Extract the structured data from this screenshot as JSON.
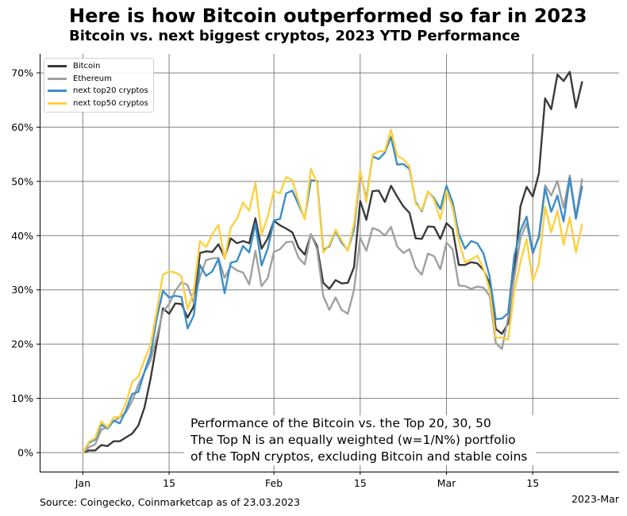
{
  "title": "Here is how Bitcoin outperformed so far in 2023",
  "subtitle": "Bitcoin vs. next biggest cryptos, 2023 YTD Performance",
  "source": "Source: Coingecko, Coinmarketcap as of 23.03.2023",
  "annotation": [
    "Performance of the Bitcoin vs. the Top 20, 30, 50",
    "The Top N is an equally weighted (w=1/N%) portfolio",
    "of the TopN cryptos, excluding Bitcoin and stable coins"
  ],
  "chart_data": {
    "type": "line",
    "title": "Here is how Bitcoin outperformed so far in 2023",
    "subtitle": "Bitcoin vs. next biggest cryptos, 2023 YTD Performance",
    "xlabel": "2023-Mar",
    "ylabel": "",
    "x_start": "2023-01-01",
    "xlim": [
      "2022-12-25",
      "2023-03-29"
    ],
    "ylim": [
      -3.5,
      73.5
    ],
    "x_ticks": [
      {
        "date": "2023-01-01",
        "label": "Jan"
      },
      {
        "date": "2023-01-15",
        "label": "15"
      },
      {
        "date": "2023-02-01",
        "label": "Feb"
      },
      {
        "date": "2023-02-15",
        "label": "15"
      },
      {
        "date": "2023-03-01",
        "label": "Mar"
      },
      {
        "date": "2023-03-15",
        "label": "15"
      }
    ],
    "y_ticks": [
      0,
      10,
      20,
      30,
      40,
      50,
      60,
      70
    ],
    "y_tick_format": "percent",
    "grid": true,
    "legend_position": "top-left",
    "series": [
      {
        "name": "Bitcoin",
        "color": "#3a3a3a",
        "values": [
          0,
          0.4,
          0.4,
          1.4,
          1.2,
          2.1,
          2.1,
          2.8,
          3.5,
          5,
          8.3,
          13.7,
          20.3,
          26.6,
          25.6,
          27.5,
          27.4,
          24.9,
          27,
          36.8,
          37.1,
          37,
          38.4,
          36,
          39.5,
          38.6,
          39,
          38.6,
          43.2,
          37.6,
          39.5,
          42.7,
          41.9,
          41.3,
          40.6,
          37.8,
          36.5,
          40.2,
          38.1,
          31.3,
          30.2,
          31.8,
          31.2,
          31.3,
          34.2,
          46.4,
          42.9,
          48.2,
          48.3,
          46.2,
          49.2,
          47.2,
          45.4,
          44.2,
          39.5,
          39.4,
          41.7,
          41.6,
          39.4,
          42.3,
          41.2,
          34.6,
          34.6,
          35.1,
          34.9,
          33.7,
          31.2,
          22.8,
          21.9,
          23.8,
          33.1,
          45.4,
          49,
          47.2,
          51.5,
          65.3,
          63.3,
          69.7,
          68.5,
          70.2,
          63.6,
          68.3
        ]
      },
      {
        "name": "Ethereum",
        "color": "#a0a0a0",
        "values": [
          0,
          1,
          1.5,
          4.2,
          4.8,
          5.8,
          6.5,
          7.4,
          9.5,
          12.5,
          14.8,
          17,
          21.4,
          26,
          27.4,
          29.8,
          31.4,
          30.9,
          27.6,
          32.4,
          35.5,
          35.8,
          35.9,
          32.2,
          34.4,
          33.6,
          33.2,
          31,
          37.2,
          30.7,
          32.2,
          37,
          37.5,
          38.8,
          38.9,
          35.9,
          34.7,
          40.3,
          37.5,
          28.9,
          26.3,
          28.6,
          26.3,
          25.6,
          30,
          39.6,
          37.2,
          41.4,
          41,
          40,
          41.6,
          38,
          36.8,
          37.5,
          34.1,
          32.8,
          36.7,
          36.2,
          33.8,
          38.7,
          37.5,
          30.8,
          30.7,
          30.2,
          30.6,
          30.4,
          28.9,
          20.2,
          19.1,
          24.9,
          32.3,
          39.5,
          42.3,
          36.6,
          40,
          49.3,
          47.4,
          50.1,
          45.1,
          51.1,
          43.6,
          50.4
        ]
      },
      {
        "name": "next top20 cryptos",
        "color": "#3a8ec8",
        "values": [
          0,
          1.8,
          2.4,
          5.2,
          4.4,
          5.9,
          5.4,
          7.8,
          10.8,
          11.2,
          14.9,
          18.2,
          24.8,
          29.8,
          28.6,
          28.9,
          28.7,
          22.9,
          25.3,
          34.6,
          32.6,
          33.4,
          35.7,
          29.4,
          35,
          35.3,
          38.1,
          36.9,
          42.2,
          34.5,
          37.6,
          42.8,
          43.1,
          47.8,
          48.3,
          45.7,
          43.2,
          50.2,
          50.1,
          37.4,
          38,
          40.9,
          38.7,
          37.3,
          41.2,
          51.6,
          46.8,
          54.6,
          54.1,
          55.3,
          58.2,
          53.1,
          53.2,
          52.3,
          46.2,
          44.5,
          48.1,
          46.9,
          44.9,
          49.2,
          46.1,
          40.3,
          37.6,
          39,
          38.6,
          36.7,
          32.5,
          24.6,
          24.7,
          25.7,
          36.3,
          40.9,
          43.5,
          36.9,
          39.7,
          48.7,
          44.4,
          47.4,
          42.6,
          50.6,
          43.1,
          49
        ]
      },
      {
        "name": "next top50 cryptos",
        "color": "#fdd040",
        "values": [
          0,
          2,
          2.7,
          5.8,
          4.6,
          6.5,
          6.6,
          9.1,
          13,
          14,
          17.1,
          19.8,
          26.2,
          32.8,
          33.4,
          33.2,
          32.5,
          26.4,
          29.7,
          39,
          37.9,
          40.2,
          42,
          35.7,
          41.5,
          43.1,
          46.1,
          44.6,
          49.7,
          40.2,
          43.5,
          48.2,
          47.8,
          50.8,
          50.2,
          46.4,
          43,
          52.3,
          49.7,
          36.9,
          38.3,
          41.1,
          39.1,
          37.2,
          42.2,
          52,
          46.2,
          54.9,
          55.5,
          55.6,
          59.5,
          54.7,
          54.1,
          52.8,
          45.9,
          44.7,
          48.2,
          46.6,
          43,
          48.3,
          45.1,
          39.1,
          35.1,
          35.6,
          36.3,
          33.9,
          30,
          21.2,
          21.2,
          20.8,
          29.8,
          35.1,
          39.4,
          31.6,
          34.7,
          45.3,
          40.6,
          44.6,
          38.3,
          43.4,
          36.9,
          42
        ]
      }
    ]
  }
}
